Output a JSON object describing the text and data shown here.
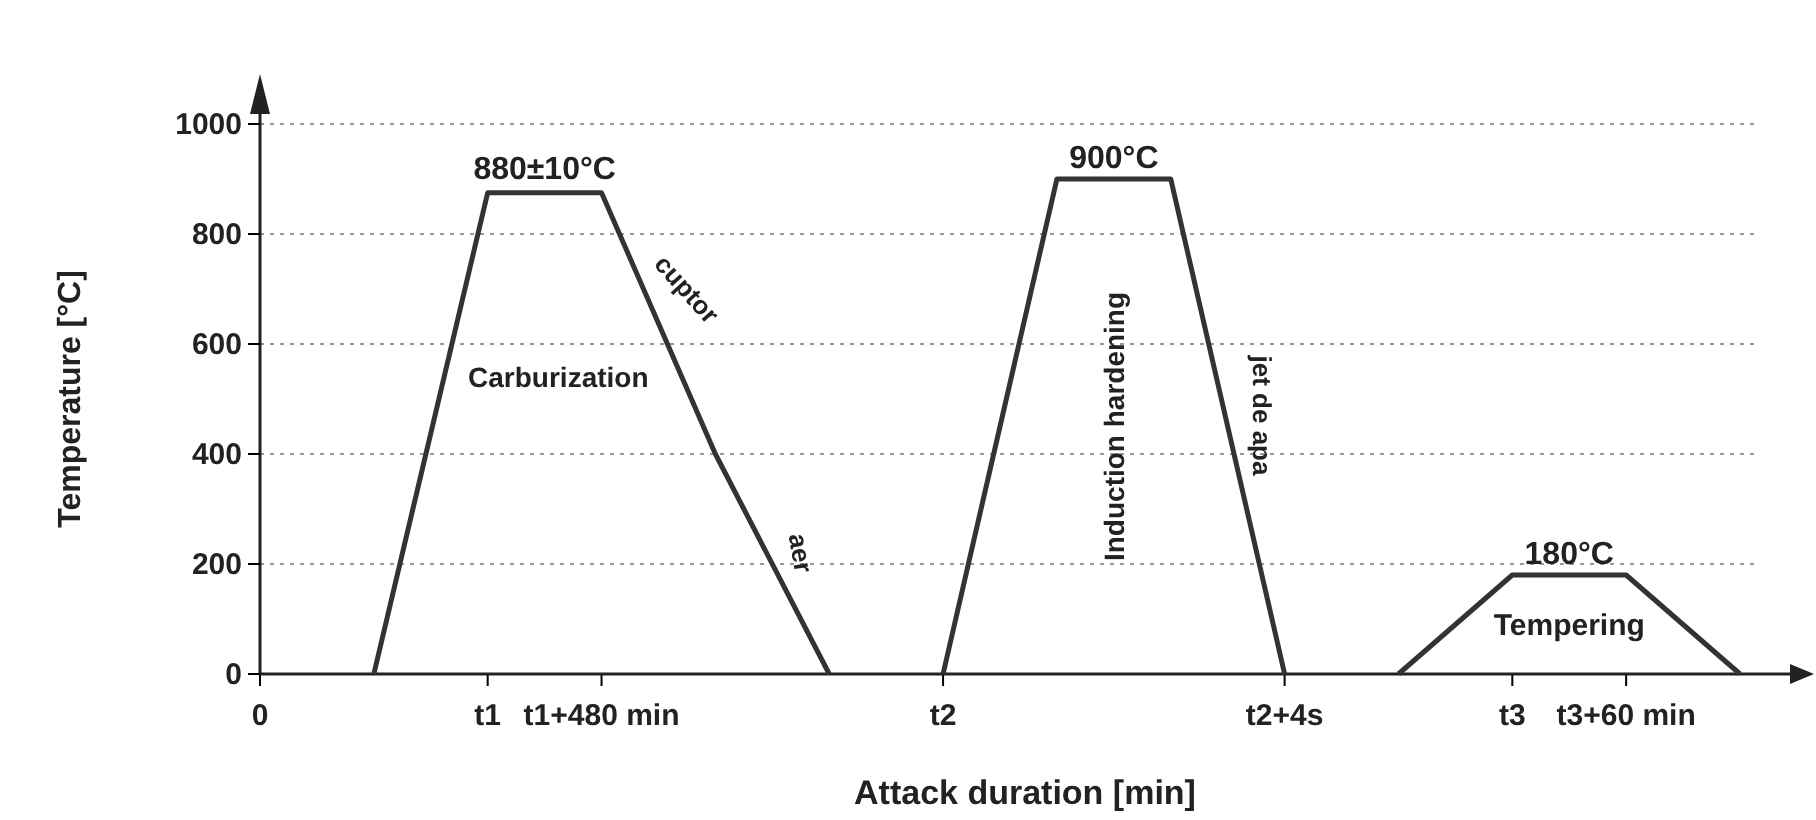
{
  "chart_data": {
    "type": "line",
    "xlabel": "Attack duration [min]",
    "ylabel": "Temperature [°C]",
    "categories": [
      "0",
      null,
      "t1",
      "t1+480 min",
      null,
      null,
      "t2",
      null,
      null,
      "t2+4s",
      null,
      "t3",
      "t3+60 min",
      null
    ],
    "ylim": [
      0,
      1000
    ],
    "yticks": [
      0,
      200,
      400,
      600,
      800,
      1000
    ],
    "grid": "y",
    "marker": "none",
    "line_style": "solid",
    "series": [
      {
        "color": "#333333",
        "values": [
          null,
          0,
          875,
          875,
          400,
          0,
          null,
          null,
          null,
          null,
          null,
          null,
          null,
          null
        ]
      },
      {
        "color": "#333333",
        "values": [
          null,
          null,
          null,
          null,
          null,
          null,
          0,
          900,
          900,
          0,
          null,
          null,
          null,
          null
        ]
      },
      {
        "color": "#333333",
        "values": [
          null,
          null,
          null,
          null,
          null,
          null,
          null,
          null,
          null,
          null,
          0,
          180,
          180,
          0
        ]
      }
    ],
    "annotations": [
      "880±10°C",
      "900°C",
      "180°C",
      "Carburization",
      "cuptor",
      "aer",
      "Induction hardening",
      "jet de apa",
      "Tempering"
    ]
  }
}
